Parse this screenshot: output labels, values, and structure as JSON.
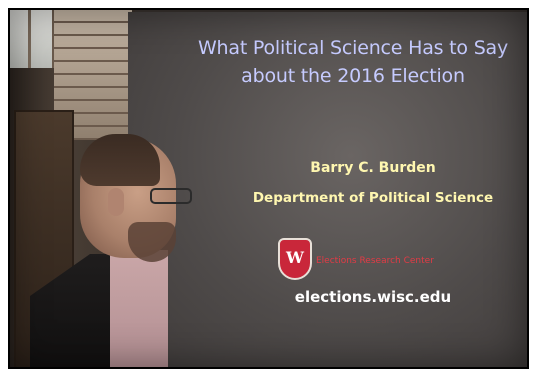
{
  "slide": {
    "title_line1": "What Political Science Has to Say",
    "title_line2": "about the 2016 Election",
    "presenter": "Barry C. Burden",
    "department": "Department of Political Science",
    "logo_letter": "W",
    "center_name": "Elections Research Center",
    "url": "elections.wisc.edu"
  },
  "colors": {
    "title": "#c6cbff",
    "presenter_text": "#fff7b0",
    "logo_red": "#c9273a"
  }
}
